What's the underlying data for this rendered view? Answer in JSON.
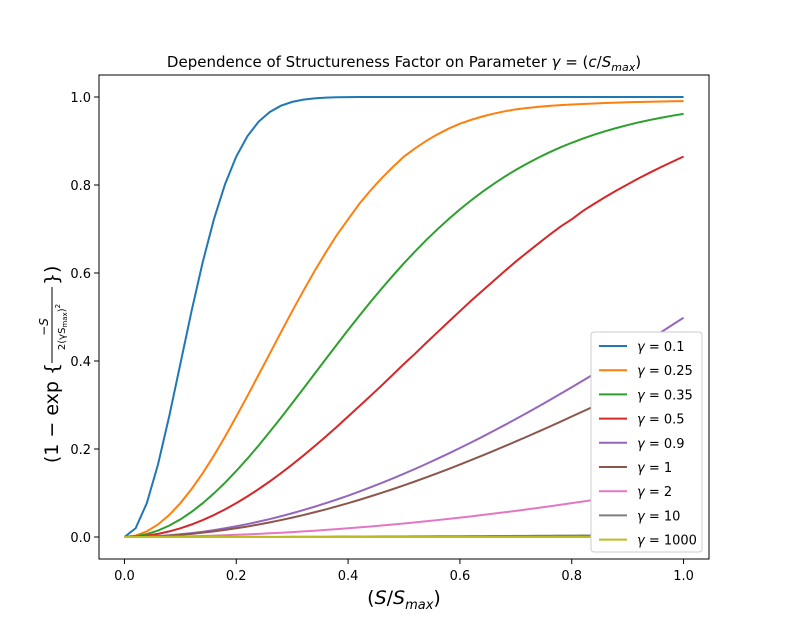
{
  "chart_data": {
    "type": "line",
    "title": "Dependence of Structureness Factor on Parameter γ = (c/S_max)",
    "title_parts": {
      "prefix": "Dependence of Structureness Factor on Parameter ",
      "gamma": "γ",
      "eq": " = (",
      "c": "c",
      "slash": "/",
      "S": "S",
      "max": "max",
      "close": ")"
    },
    "xlabel": "(S/S_max)",
    "xlabel_parts": {
      "open": "(",
      "S": "S",
      "slash": "/",
      "S2": "S",
      "max": "max",
      "close": ")"
    },
    "ylabel": "(1 − exp{ −S / (2(γS_max)²) })",
    "ylabel_parts": {
      "open": "(1 − exp",
      "brace_open": "{",
      "num": "−S",
      "den_a": "2(γS",
      "den_max": "max",
      "den_b": ")",
      "den_sq": "2",
      "brace_close": "}",
      "close": ")"
    },
    "xlim": [
      -0.0455,
      1.0455
    ],
    "ylim": [
      -0.05,
      1.05
    ],
    "xticks": [
      0.0,
      0.2,
      0.4,
      0.6,
      0.8,
      1.0
    ],
    "xtick_labels": [
      "0.0",
      "0.2",
      "0.4",
      "0.6",
      "0.8",
      "1.0"
    ],
    "yticks": [
      0.0,
      0.2,
      0.4,
      0.6,
      0.8,
      1.0
    ],
    "ytick_labels": [
      "0.0",
      "0.2",
      "0.4",
      "0.6",
      "0.8",
      "1.0"
    ],
    "grid": false,
    "legend_position": "lower-right",
    "legend_prefix": "γ = ",
    "x": [
      0.0,
      0.02,
      0.04,
      0.06,
      0.08,
      0.1,
      0.12,
      0.14,
      0.16,
      0.18,
      0.2,
      0.22,
      0.24,
      0.26,
      0.28,
      0.3,
      0.32,
      0.34,
      0.36,
      0.38,
      0.4,
      0.42,
      0.44,
      0.46,
      0.48,
      0.5,
      0.52,
      0.54,
      0.56,
      0.58,
      0.6,
      0.62,
      0.64,
      0.66,
      0.68,
      0.7,
      0.72,
      0.74,
      0.76,
      0.78,
      0.8,
      0.82,
      0.84,
      0.86,
      0.88,
      0.9,
      0.92,
      0.94,
      0.96,
      0.98,
      1.0
    ],
    "series": [
      {
        "name": "0.1",
        "color": "#1f77b4",
        "values": [
          0.0,
          0.0198,
          0.0769,
          0.1647,
          0.2739,
          0.3935,
          0.5132,
          0.6247,
          0.722,
          0.8021,
          0.8647,
          0.9111,
          0.9439,
          0.966,
          0.9802,
          0.9889,
          0.994,
          0.9969,
          0.9985,
          0.9993,
          0.9997,
          0.9999,
          0.99994,
          0.99997,
          0.99999,
          1.0,
          1.0,
          1.0,
          1.0,
          1.0,
          1.0,
          1.0,
          1.0,
          1.0,
          1.0,
          1.0,
          1.0,
          1.0,
          1.0,
          1.0,
          1.0,
          1.0,
          1.0,
          1.0,
          1.0,
          1.0,
          1.0,
          1.0,
          1.0,
          1.0,
          1.0
        ]
      },
      {
        "name": "0.25",
        "color": "#ff7f0e",
        "values": [
          0.0,
          0.0032,
          0.0127,
          0.0284,
          0.0499,
          0.0769,
          0.1088,
          0.1451,
          0.1851,
          0.2281,
          0.2739,
          0.3206,
          0.3687,
          0.4169,
          0.4655,
          0.5132,
          0.5595,
          0.6042,
          0.6465,
          0.6866,
          0.722,
          0.7571,
          0.7875,
          0.8154,
          0.8409,
          0.8647,
          0.8834,
          0.9004,
          0.9152,
          0.9282,
          0.9393,
          0.948,
          0.9557,
          0.9621,
          0.9675,
          0.972,
          0.975,
          0.9776,
          0.9798,
          0.9816,
          0.983,
          0.9842,
          0.9853,
          0.9863,
          0.9872,
          0.988,
          0.9887,
          0.9893,
          0.9898,
          0.9902,
          0.9905
        ]
      },
      {
        "name": "0.35",
        "color": "#2ca02c",
        "values": [
          0.0,
          0.0016,
          0.0065,
          0.0146,
          0.0258,
          0.04,
          0.0571,
          0.0768,
          0.099,
          0.1235,
          0.15,
          0.1782,
          0.208,
          0.2391,
          0.2711,
          0.3039,
          0.3372,
          0.3707,
          0.4042,
          0.4375,
          0.4704,
          0.5026,
          0.534,
          0.5645,
          0.5939,
          0.6222,
          0.6493,
          0.6751,
          0.6996,
          0.7228,
          0.7446,
          0.7651,
          0.7843,
          0.8022,
          0.8189,
          0.8344,
          0.8487,
          0.862,
          0.8743,
          0.8856,
          0.896,
          0.9055,
          0.9143,
          0.9223,
          0.9296,
          0.9363,
          0.9424,
          0.9479,
          0.9529,
          0.9575,
          0.9617
        ]
      },
      {
        "name": "0.5",
        "color": "#d62728",
        "values": [
          0.0,
          0.0008,
          0.0032,
          0.0072,
          0.0127,
          0.0198,
          0.0284,
          0.0385,
          0.0499,
          0.0627,
          0.0769,
          0.0923,
          0.1088,
          0.1264,
          0.1451,
          0.1647,
          0.1851,
          0.2063,
          0.2281,
          0.2506,
          0.2739,
          0.2971,
          0.3206,
          0.3444,
          0.3687,
          0.3935,
          0.4169,
          0.4415,
          0.4655,
          0.4894,
          0.5132,
          0.5369,
          0.5595,
          0.5817,
          0.6042,
          0.626,
          0.6465,
          0.6666,
          0.6866,
          0.7055,
          0.722,
          0.7411,
          0.7571,
          0.7727,
          0.7875,
          0.8015,
          0.8154,
          0.8283,
          0.8409,
          0.8529,
          0.8647
        ]
      },
      {
        "name": "0.9",
        "color": "#9467bd",
        "values": [
          0.0,
          0.0002,
          0.001,
          0.0022,
          0.0039,
          0.0062,
          0.0089,
          0.012,
          0.0157,
          0.0198,
          0.0244,
          0.0294,
          0.0349,
          0.0408,
          0.0472,
          0.054,
          0.0612,
          0.0688,
          0.0768,
          0.0852,
          0.094,
          0.1032,
          0.1128,
          0.1228,
          0.1331,
          0.1438,
          0.1548,
          0.1662,
          0.1779,
          0.1899,
          0.2022,
          0.2148,
          0.2277,
          0.2409,
          0.2544,
          0.2681,
          0.2821,
          0.2963,
          0.3108,
          0.3255,
          0.3404,
          0.3555,
          0.3708,
          0.3862,
          0.4018,
          0.4176,
          0.4335,
          0.4496,
          0.4658,
          0.4821,
          0.4985
        ]
      },
      {
        "name": "1",
        "color": "#8c564b",
        "values": [
          0.0,
          0.0002,
          0.0008,
          0.0018,
          0.0032,
          0.005,
          0.0072,
          0.0098,
          0.0127,
          0.0161,
          0.0198,
          0.0239,
          0.0284,
          0.0333,
          0.0385,
          0.044,
          0.0499,
          0.0562,
          0.0627,
          0.0697,
          0.0769,
          0.0844,
          0.0923,
          0.1004,
          0.1088,
          0.1175,
          0.1264,
          0.1356,
          0.1451,
          0.1548,
          0.1647,
          0.1748,
          0.1851,
          0.1956,
          0.2063,
          0.2171,
          0.2281,
          0.2393,
          0.2506,
          0.2621,
          0.2739,
          0.2855,
          0.2971,
          0.3088,
          0.3206,
          0.3325,
          0.3444,
          0.3565,
          0.3687,
          0.381,
          0.3935
        ]
      },
      {
        "name": "2",
        "color": "#e377c2",
        "values": [
          0.0,
          5e-05,
          0.0002,
          0.00045,
          0.0008,
          0.0012,
          0.0018,
          0.0024,
          0.0032,
          0.004,
          0.005,
          0.006,
          0.0072,
          0.0084,
          0.0098,
          0.0112,
          0.0127,
          0.0143,
          0.0161,
          0.0179,
          0.0198,
          0.0218,
          0.0239,
          0.0261,
          0.0284,
          0.0308,
          0.0333,
          0.0358,
          0.0385,
          0.0412,
          0.044,
          0.0469,
          0.0499,
          0.053,
          0.0562,
          0.0594,
          0.0627,
          0.0661,
          0.0697,
          0.0733,
          0.0769,
          0.0806,
          0.0844,
          0.0883,
          0.0923,
          0.0963,
          0.1004,
          0.1045,
          0.1088,
          0.1131,
          0.1175
        ]
      },
      {
        "name": "10",
        "color": "#7f7f7f",
        "values": [
          0.0,
          2e-06,
          8e-06,
          1.8e-05,
          3.2e-05,
          5e-05,
          7.2e-05,
          9.8e-05,
          0.000128,
          0.000162,
          0.0002,
          0.000242,
          0.000288,
          0.000338,
          0.000392,
          0.00045,
          0.000512,
          0.000578,
          0.000648,
          0.000722,
          0.0008,
          0.000882,
          0.000968,
          0.001058,
          0.001152,
          0.00125,
          0.001352,
          0.001458,
          0.001568,
          0.001682,
          0.0018,
          0.001922,
          0.002048,
          0.002178,
          0.002312,
          0.00245,
          0.002592,
          0.002738,
          0.002888,
          0.003042,
          0.0032,
          0.003362,
          0.003528,
          0.003698,
          0.003872,
          0.00405,
          0.004232,
          0.004418,
          0.004608,
          0.004802,
          0.005
        ]
      },
      {
        "name": "1000",
        "color": "#bcbd22",
        "values": [
          0.0,
          2e-10,
          8e-10,
          1.8e-09,
          3.2e-09,
          5e-09,
          7.2e-09,
          9.8e-09,
          1.28e-08,
          1.62e-08,
          2e-08,
          2.42e-08,
          2.88e-08,
          3.38e-08,
          3.92e-08,
          4.5e-08,
          5.12e-08,
          5.78e-08,
          6.48e-08,
          7.22e-08,
          8e-08,
          8.82e-08,
          9.68e-08,
          1.058e-07,
          1.152e-07,
          1.25e-07,
          1.352e-07,
          1.458e-07,
          1.568e-07,
          1.682e-07,
          1.8e-07,
          1.922e-07,
          2.048e-07,
          2.178e-07,
          2.312e-07,
          2.45e-07,
          2.592e-07,
          2.738e-07,
          2.888e-07,
          3.042e-07,
          3.2e-07,
          3.362e-07,
          3.528e-07,
          3.698e-07,
          3.872e-07,
          4.05e-07,
          4.232e-07,
          4.418e-07,
          4.608e-07,
          4.802e-07,
          5e-07
        ]
      }
    ]
  }
}
